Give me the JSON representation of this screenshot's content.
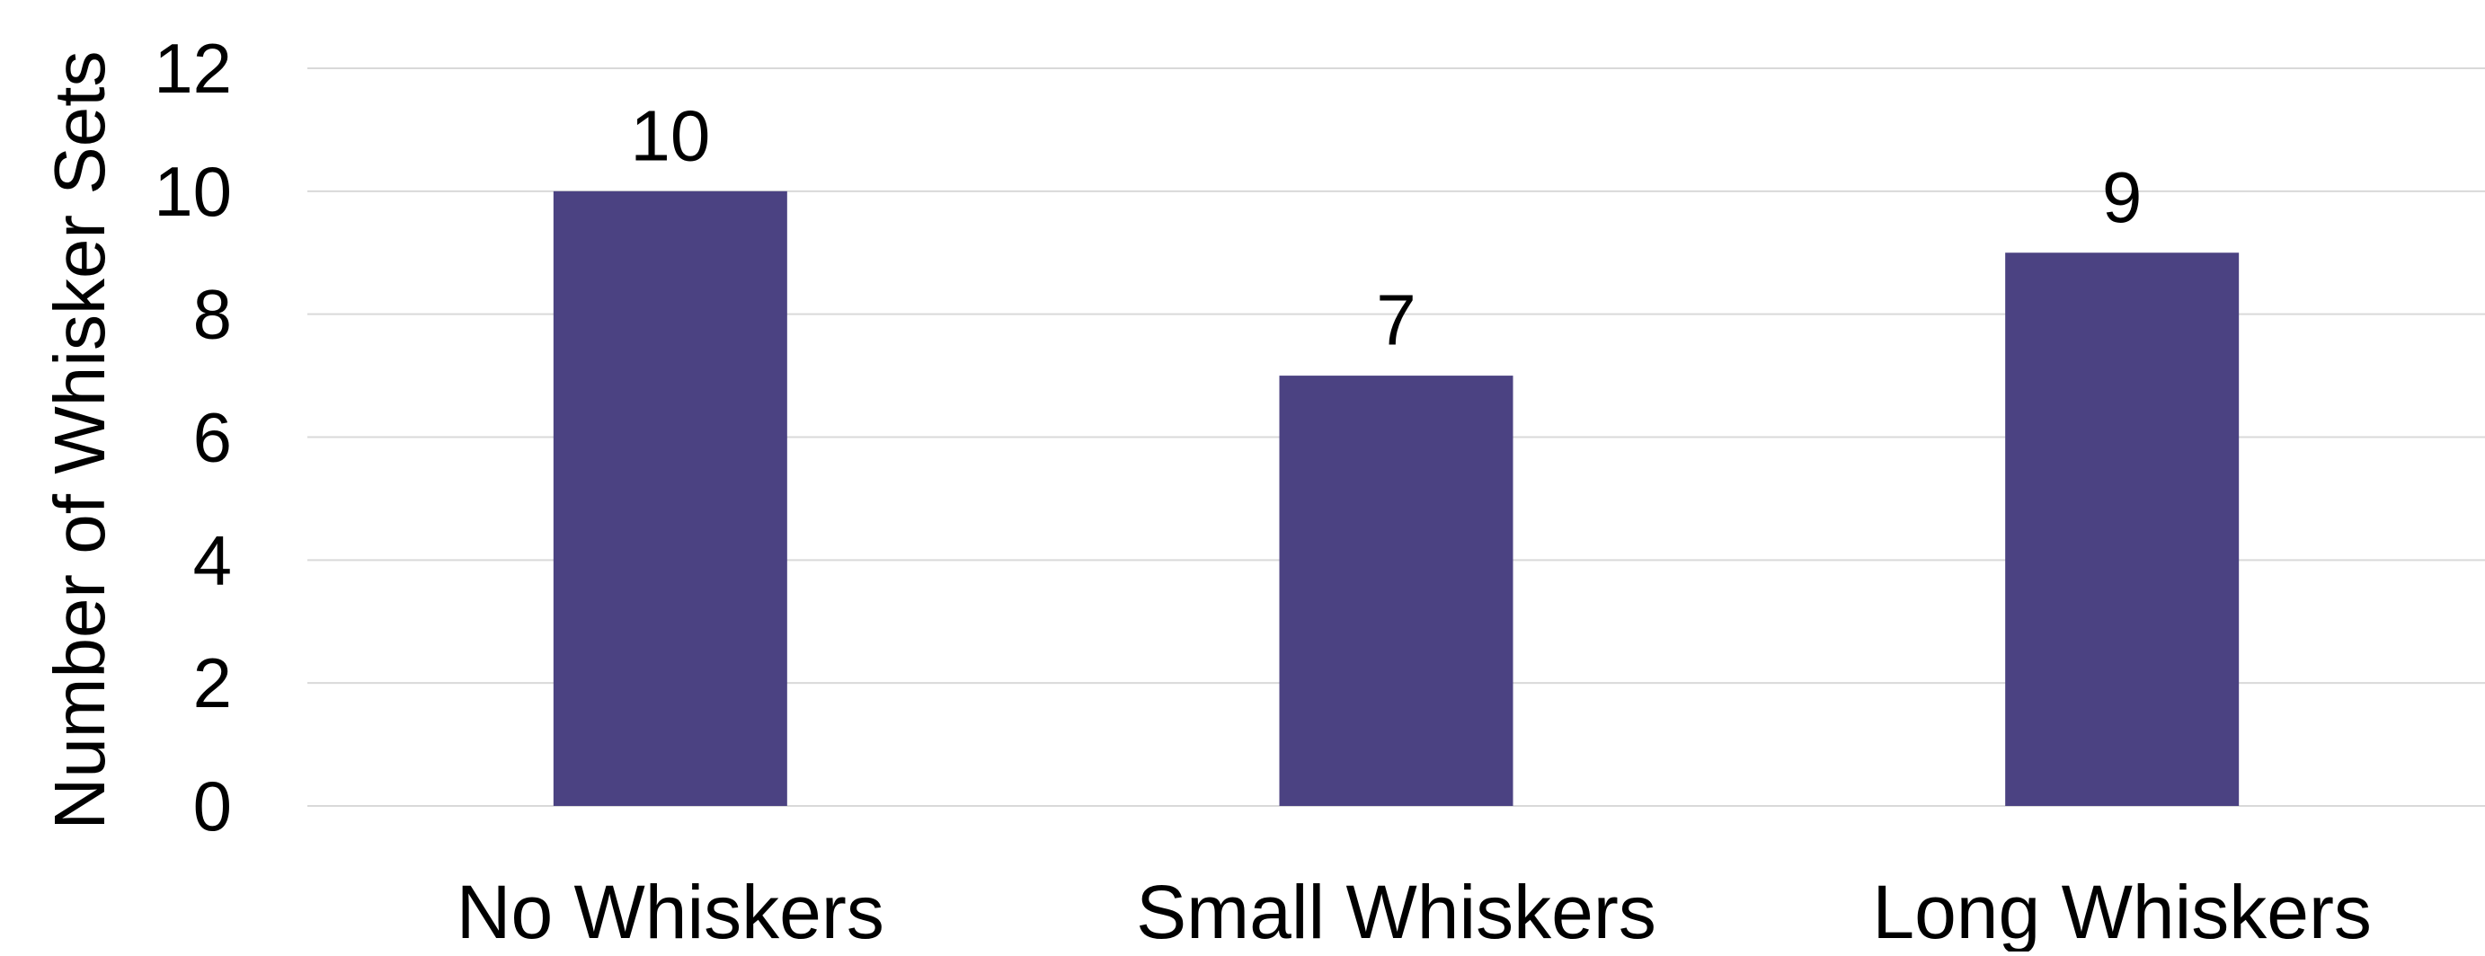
{
  "chart_data": {
    "type": "bar",
    "title": "",
    "xlabel": "",
    "ylabel": "Number of Whisker Sets",
    "categories": [
      "No Whiskers",
      "Small Whiskers",
      "Long Whiskers"
    ],
    "values": [
      10,
      7,
      9
    ],
    "data_labels": [
      "10",
      "7",
      "9"
    ],
    "ylim": [
      0,
      12
    ],
    "yticks": [
      0,
      2,
      4,
      6,
      8,
      10,
      12
    ],
    "grid": true,
    "legend": "none",
    "bar_color": "#4b4282",
    "grid_color": "#d9d9d9"
  }
}
